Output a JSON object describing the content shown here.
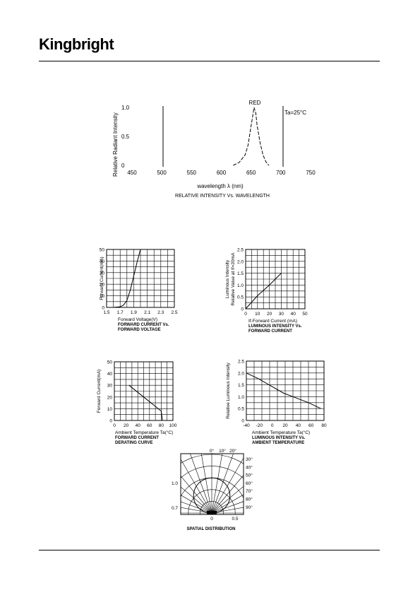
{
  "header": {
    "brand": "Kingbright"
  },
  "chart_data": [
    {
      "type": "line",
      "title": "RELATIVE INTENSITY Vs. WAVELENGTH",
      "xlabel": "wavelength λ (nm)",
      "ylabel": "Relative Radiant Intensity",
      "x_ticks": [
        "450",
        "500",
        "550",
        "600",
        "650",
        "700",
        "750"
      ],
      "y_ticks": [
        "0",
        "0.5",
        "1.0"
      ],
      "xlim": [
        450,
        750
      ],
      "ylim": [
        0,
        1.0
      ],
      "series": [
        {
          "name": "RED",
          "x": [
            620,
            630,
            640,
            645,
            650,
            652,
            655,
            658,
            660,
            665,
            670,
            675,
            680
          ],
          "y": [
            0,
            0.05,
            0.18,
            0.35,
            0.68,
            0.8,
            1.0,
            0.9,
            0.7,
            0.4,
            0.18,
            0.06,
            0
          ]
        }
      ],
      "annotation": "Ta=25°C"
    },
    {
      "type": "line",
      "title": "FORWARD CURRENT Vs.",
      "title2": "FORWARD VOLTAGE",
      "xlabel": "Forward Voltage(V)",
      "ylabel": "Forward Current(mA)",
      "x_ticks": [
        "1.5",
        "1.7",
        "1.9",
        "2.1",
        "2.3",
        "2.5"
      ],
      "y_ticks": [
        "0",
        "10",
        "20",
        "30",
        "40",
        "50"
      ],
      "xlim": [
        1.5,
        2.5
      ],
      "ylim": [
        0,
        50
      ],
      "series": [
        {
          "x": [
            1.6,
            1.7,
            1.75,
            1.8,
            1.85,
            1.9,
            1.95,
            2.0
          ],
          "y": [
            0,
            0.5,
            2,
            6,
            15,
            27,
            39,
            50
          ]
        }
      ]
    },
    {
      "type": "line",
      "title": "LUMINOUS INTENSITY Vs.",
      "title2": "FORWARD CURRENT",
      "xlabel": "If-Forward Current (mA)",
      "ylabel": "Luminous Intensity",
      "ylabel2": "Relative Value at If=20mA",
      "x_ticks": [
        "0",
        "10",
        "20",
        "30",
        "40",
        "50"
      ],
      "y_ticks": [
        "0",
        "0.5",
        "1.0",
        "1.5",
        "2.0",
        "2.5"
      ],
      "xlim": [
        0,
        50
      ],
      "ylim": [
        0,
        2.5
      ],
      "series": [
        {
          "x": [
            0,
            10,
            20,
            30
          ],
          "y": [
            0,
            0.55,
            1.0,
            1.5
          ]
        }
      ]
    },
    {
      "type": "line",
      "title": "FORWARD CURRENT",
      "title2": "DERATING CURVE",
      "xlabel": "Ambient Temperature Ta(°C)",
      "ylabel": "Forward Current(mA)",
      "x_ticks": [
        "0",
        "20",
        "40",
        "60",
        "80",
        "100"
      ],
      "y_ticks": [
        "0",
        "10",
        "20",
        "30",
        "40",
        "50"
      ],
      "xlim": [
        0,
        100
      ],
      "ylim": [
        0,
        50
      ],
      "series": [
        {
          "x": [
            25,
            50,
            75,
            80,
            82
          ],
          "y": [
            30,
            20,
            10,
            8,
            0
          ]
        }
      ]
    },
    {
      "type": "line",
      "title": "LUMINOUS INTENSITY Vs.",
      "title2": "AMBIENT TEMPERATURE",
      "xlabel": "Ambient Temperature Ta(°C)",
      "ylabel": "Relative Luminous Intensity",
      "x_ticks": [
        "-40",
        "-20",
        "0",
        "20",
        "40",
        "60",
        "80"
      ],
      "y_ticks": [
        "0",
        "0.5",
        "1.0",
        "1.5",
        "2.0",
        "2.5"
      ],
      "xlim": [
        -40,
        85
      ],
      "ylim": [
        0,
        2.5
      ],
      "series": [
        {
          "x": [
            -40,
            -20,
            0,
            20,
            40,
            60,
            80
          ],
          "y": [
            2.0,
            1.75,
            1.45,
            1.15,
            0.95,
            0.75,
            0.5
          ]
        }
      ]
    },
    {
      "type": "polar",
      "title": "SPATIAL DISTRIBUTION",
      "top_labels": [
        "0°",
        "10°",
        "20°"
      ],
      "side_labels": [
        "30°",
        "40°",
        "50°",
        "60°",
        "70°",
        "80°",
        "90°"
      ],
      "left_labels": [
        "1.0",
        "0.7"
      ],
      "bottom_labels": [
        "0",
        "0.5"
      ]
    }
  ]
}
